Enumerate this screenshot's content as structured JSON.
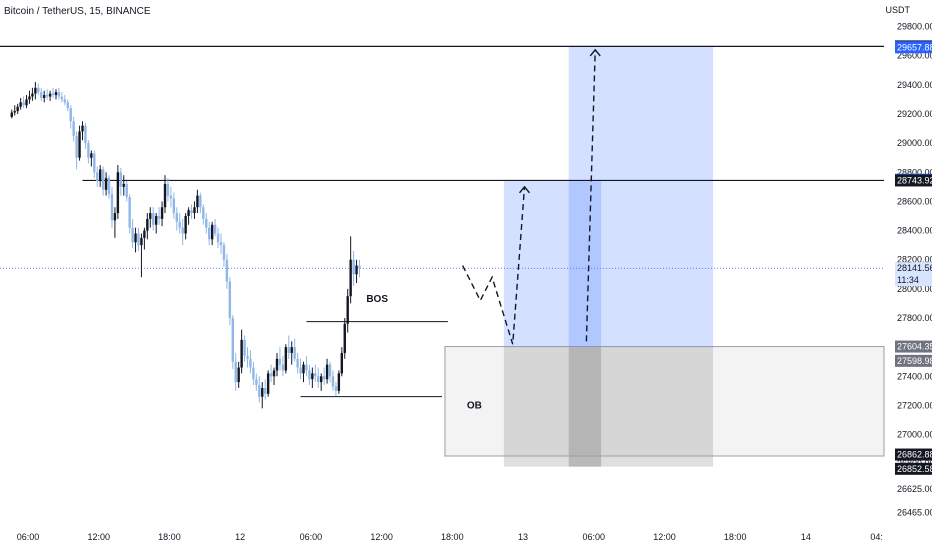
{
  "header": {
    "title": "Bitcoin / TetherUS, 15, BINANCE",
    "currency": "USDT"
  },
  "chart_data": {
    "type": "candlestick",
    "ylim": [
      26400,
      29900
    ],
    "y_ticks": [
      "29800.00",
      "29600.00",
      "29400.00",
      "29200.00",
      "29000.00",
      "28800.00",
      "28600.00",
      "28400.00",
      "28200.00",
      "28000.00",
      "27800.00",
      "27600.00",
      "27400.00",
      "27200.00",
      "27000.00",
      "26800.00",
      "26625.00",
      "26465.00"
    ],
    "y_tick_values": [
      29800,
      29600,
      29400,
      29200,
      29000,
      28800,
      28600,
      28400,
      28200,
      28000,
      27800,
      27600,
      27400,
      27200,
      27000,
      26800,
      26625,
      26465
    ],
    "x_ticks": [
      {
        "label": "06:00",
        "x": 0
      },
      {
        "label": "12:00",
        "x": 24
      },
      {
        "label": "18:00",
        "x": 48
      },
      {
        "label": "12",
        "x": 72
      },
      {
        "label": "06:00",
        "x": 96
      },
      {
        "label": "12:00",
        "x": 120
      },
      {
        "label": "18:00",
        "x": 144
      },
      {
        "label": "13",
        "x": 168
      },
      {
        "label": "06:00",
        "x": 192
      },
      {
        "label": "12:00",
        "x": 216
      },
      {
        "label": "18:00",
        "x": 240
      },
      {
        "label": "14",
        "x": 264
      },
      {
        "label": "04:",
        "x": 288
      }
    ],
    "price_tags": [
      {
        "value": "29663.95",
        "price": 29664,
        "bg": "#131722",
        "fg": "#ffffff"
      },
      {
        "value": "29657.88",
        "price": 29658,
        "bg": "#2962ff",
        "fg": "#ffffff"
      },
      {
        "value": "28749.29",
        "price": 28749,
        "bg": "#2962ff",
        "fg": "#ffffff"
      },
      {
        "value": "28743.92",
        "price": 28744,
        "bg": "#131722",
        "fg": "#ffffff"
      },
      {
        "value": "28141.56",
        "price": 28142,
        "bg": "#d6e4ff",
        "fg": "#131722"
      },
      {
        "value": "11:34",
        "price": 28060,
        "bg": "#d6e4ff",
        "fg": "#131722"
      },
      {
        "value": "27604.35",
        "price": 27604,
        "bg": "#6f7380",
        "fg": "#ffffff"
      },
      {
        "value": "27598.98",
        "price": 27506,
        "bg": "#6f7380",
        "fg": "#ffffff"
      },
      {
        "value": "26862.88",
        "price": 26863,
        "bg": "#131722",
        "fg": "#ffffff"
      },
      {
        "value": "26852.58",
        "price": 26765,
        "bg": "#131722",
        "fg": "#ffffff"
      }
    ],
    "horizontal_levels": [
      {
        "price": 29664,
        "x_from": 0
      },
      {
        "price": 28744,
        "x_from": 28
      }
    ],
    "current_price": 28141.56,
    "annotations": [
      {
        "text": "BOS",
        "price": 27910,
        "x": 128
      },
      {
        "text": "OB",
        "price": 27180,
        "x": 161
      }
    ],
    "bos_line": {
      "price": 27775,
      "x_from": 104,
      "x_to": 152
    },
    "range_low_line": {
      "price": 27260,
      "x_from": 102,
      "x_to": 150
    },
    "order_block": {
      "x_from": 151,
      "x_to": 300,
      "price_top": 27604,
      "price_bottom": 26853
    },
    "target_zones": [
      {
        "x_from": 171,
        "x_to": 204,
        "price_top": 28744,
        "price_bottom": 27604
      },
      {
        "x_from": 193,
        "x_to": 242,
        "price_top": 29664,
        "price_bottom": 27604
      }
    ],
    "gray_columns": [
      {
        "x_from": 171,
        "x_to": 242,
        "price_top": 27604,
        "price_bottom": 26780
      },
      {
        "x_from": 193,
        "x_to": 204,
        "price_top": 27604,
        "price_bottom": 26780
      }
    ],
    "projection_paths": [
      [
        [
          157,
          28160
        ],
        [
          163,
          27920
        ],
        [
          167,
          28080
        ],
        [
          174,
          27620
        ],
        [
          178,
          28700
        ]
      ],
      [
        [
          199,
          27640
        ],
        [
          202,
          29640
        ]
      ]
    ],
    "candles": [
      [
        0,
        29180,
        29230,
        29170,
        29210
      ],
      [
        1,
        29210,
        29260,
        29190,
        29220
      ],
      [
        2,
        29220,
        29270,
        29200,
        29250
      ],
      [
        3,
        29250,
        29310,
        29230,
        29280
      ],
      [
        4,
        29280,
        29320,
        29240,
        29260
      ],
      [
        5,
        29260,
        29330,
        29240,
        29300
      ],
      [
        6,
        29300,
        29360,
        29270,
        29320
      ],
      [
        7,
        29320,
        29380,
        29290,
        29340
      ],
      [
        8,
        29340,
        29420,
        29300,
        29380
      ],
      [
        9,
        29380,
        29410,
        29330,
        29350
      ],
      [
        10,
        29350,
        29380,
        29290,
        29310
      ],
      [
        11,
        29310,
        29360,
        29280,
        29330
      ],
      [
        12,
        29330,
        29370,
        29300,
        29320
      ],
      [
        13,
        29320,
        29360,
        29290,
        29340
      ],
      [
        14,
        29340,
        29380,
        29310,
        29330
      ],
      [
        15,
        29330,
        29370,
        29300,
        29350
      ],
      [
        16,
        29350,
        29380,
        29300,
        29320
      ],
      [
        17,
        29320,
        29350,
        29280,
        29300
      ],
      [
        18,
        29300,
        29330,
        29260,
        29280
      ],
      [
        19,
        29280,
        29300,
        29220,
        29240
      ],
      [
        20,
        29240,
        29260,
        29100,
        29150
      ],
      [
        21,
        29150,
        29180,
        29010,
        29050
      ],
      [
        22,
        29050,
        29080,
        28820,
        28900
      ],
      [
        23,
        28900,
        29120,
        28880,
        29080
      ],
      [
        24,
        29080,
        29150,
        29020,
        29120
      ],
      [
        25,
        29120,
        29140,
        28960,
        29000
      ],
      [
        26,
        29000,
        29020,
        28860,
        28900
      ],
      [
        27,
        28900,
        28950,
        28840,
        28930
      ],
      [
        28,
        28930,
        28950,
        28760,
        28800
      ],
      [
        29,
        28800,
        28840,
        28700,
        28740
      ],
      [
        30,
        28740,
        28850,
        28700,
        28820
      ],
      [
        31,
        28820,
        28840,
        28640,
        28680
      ],
      [
        32,
        28680,
        28800,
        28640,
        28760
      ],
      [
        33,
        28760,
        28780,
        28620,
        28650
      ],
      [
        34,
        28650,
        28700,
        28420,
        28470
      ],
      [
        35,
        28470,
        28560,
        28350,
        28520
      ],
      [
        36,
        28520,
        28850,
        28480,
        28800
      ],
      [
        37,
        28800,
        28830,
        28640,
        28700
      ],
      [
        38,
        28700,
        28780,
        28640,
        28720
      ],
      [
        39,
        28720,
        28740,
        28600,
        28630
      ],
      [
        40,
        28630,
        28650,
        28380,
        28420
      ],
      [
        41,
        28420,
        28480,
        28280,
        28320
      ],
      [
        42,
        28320,
        28420,
        28250,
        28380
      ],
      [
        43,
        28380,
        28420,
        28260,
        28300
      ],
      [
        44,
        28300,
        28380,
        28080,
        28350
      ],
      [
        45,
        28350,
        28420,
        28270,
        28400
      ],
      [
        46,
        28400,
        28520,
        28340,
        28480
      ],
      [
        47,
        28480,
        28560,
        28420,
        28520
      ],
      [
        48,
        28520,
        28560,
        28400,
        28440
      ],
      [
        49,
        28440,
        28520,
        28380,
        28500
      ],
      [
        50,
        28500,
        28560,
        28440,
        28480
      ],
      [
        51,
        28480,
        28600,
        28430,
        28560
      ],
      [
        52,
        28560,
        28780,
        28520,
        28720
      ],
      [
        53,
        28720,
        28760,
        28600,
        28640
      ],
      [
        54,
        28640,
        28700,
        28560,
        28620
      ],
      [
        55,
        28620,
        28660,
        28480,
        28520
      ],
      [
        56,
        28520,
        28560,
        28400,
        28460
      ],
      [
        57,
        28460,
        28520,
        28380,
        28420
      ],
      [
        58,
        28420,
        28480,
        28300,
        28380
      ],
      [
        59,
        28380,
        28520,
        28340,
        28500
      ],
      [
        60,
        28500,
        28560,
        28440,
        28540
      ],
      [
        61,
        28540,
        28580,
        28480,
        28520
      ],
      [
        62,
        28520,
        28600,
        28480,
        28560
      ],
      [
        63,
        28560,
        28680,
        28520,
        28640
      ],
      [
        64,
        28640,
        28660,
        28520,
        28560
      ],
      [
        65,
        28560,
        28580,
        28440,
        28480
      ],
      [
        66,
        28480,
        28520,
        28380,
        28420
      ],
      [
        67,
        28420,
        28460,
        28300,
        28340
      ],
      [
        68,
        28340,
        28460,
        28300,
        28440
      ],
      [
        69,
        28440,
        28480,
        28360,
        28380
      ],
      [
        70,
        28380,
        28420,
        28280,
        28320
      ],
      [
        71,
        28320,
        28380,
        28240,
        28300
      ],
      [
        72,
        28300,
        28320,
        28150,
        28200
      ],
      [
        73,
        28200,
        28240,
        28000,
        28050
      ],
      [
        74,
        28050,
        28080,
        27750,
        27800
      ],
      [
        75,
        27800,
        27820,
        27450,
        27500
      ],
      [
        76,
        27500,
        27560,
        27300,
        27360
      ],
      [
        77,
        27360,
        27500,
        27320,
        27460
      ],
      [
        78,
        27460,
        27720,
        27420,
        27650
      ],
      [
        79,
        27650,
        27680,
        27500,
        27540
      ],
      [
        80,
        27540,
        27600,
        27460,
        27520
      ],
      [
        81,
        27520,
        27580,
        27420,
        27460
      ],
      [
        82,
        27460,
        27500,
        27340,
        27380
      ],
      [
        83,
        27380,
        27420,
        27300,
        27340
      ],
      [
        84,
        27340,
        27400,
        27220,
        27260
      ],
      [
        85,
        27260,
        27360,
        27180,
        27320
      ],
      [
        86,
        27320,
        27380,
        27240,
        27280
      ],
      [
        87,
        27280,
        27440,
        27260,
        27420
      ],
      [
        88,
        27420,
        27480,
        27360,
        27400
      ],
      [
        89,
        27400,
        27460,
        27340,
        27440
      ],
      [
        90,
        27440,
        27560,
        27400,
        27520
      ],
      [
        91,
        27520,
        27600,
        27440,
        27480
      ],
      [
        92,
        27480,
        27540,
        27400,
        27440
      ],
      [
        93,
        27440,
        27620,
        27420,
        27600
      ],
      [
        94,
        27600,
        27680,
        27520,
        27560
      ],
      [
        95,
        27560,
        27640,
        27480,
        27600
      ],
      [
        96,
        27600,
        27660,
        27500,
        27520
      ],
      [
        97,
        27520,
        27560,
        27420,
        27460
      ],
      [
        98,
        27460,
        27520,
        27380,
        27420
      ],
      [
        99,
        27420,
        27500,
        27360,
        27480
      ],
      [
        100,
        27480,
        27540,
        27400,
        27440
      ],
      [
        101,
        27440,
        27480,
        27340,
        27380
      ],
      [
        102,
        27380,
        27460,
        27320,
        27420
      ],
      [
        103,
        27420,
        27480,
        27360,
        27400
      ],
      [
        104,
        27400,
        27460,
        27320,
        27360
      ],
      [
        105,
        27360,
        27420,
        27300,
        27400
      ],
      [
        106,
        27400,
        27460,
        27340,
        27380
      ],
      [
        107,
        27380,
        27520,
        27350,
        27480
      ],
      [
        108,
        27480,
        27500,
        27360,
        27400
      ],
      [
        109,
        27400,
        27440,
        27300,
        27330
      ],
      [
        110,
        27330,
        27360,
        27260,
        27300
      ],
      [
        111,
        27300,
        27440,
        27280,
        27420
      ],
      [
        112,
        27420,
        27600,
        27400,
        27560
      ],
      [
        113,
        27560,
        27800,
        27520,
        27760
      ],
      [
        114,
        27760,
        28000,
        27700,
        27950
      ],
      [
        115,
        27950,
        28360,
        27900,
        28200
      ],
      [
        116,
        28200,
        28260,
        28020,
        28100
      ],
      [
        117,
        28100,
        28200,
        28040,
        28160
      ],
      [
        118,
        28160,
        28200,
        28080,
        28140
      ]
    ],
    "candle_x_start": 4,
    "candle_x_step": 1.0
  }
}
